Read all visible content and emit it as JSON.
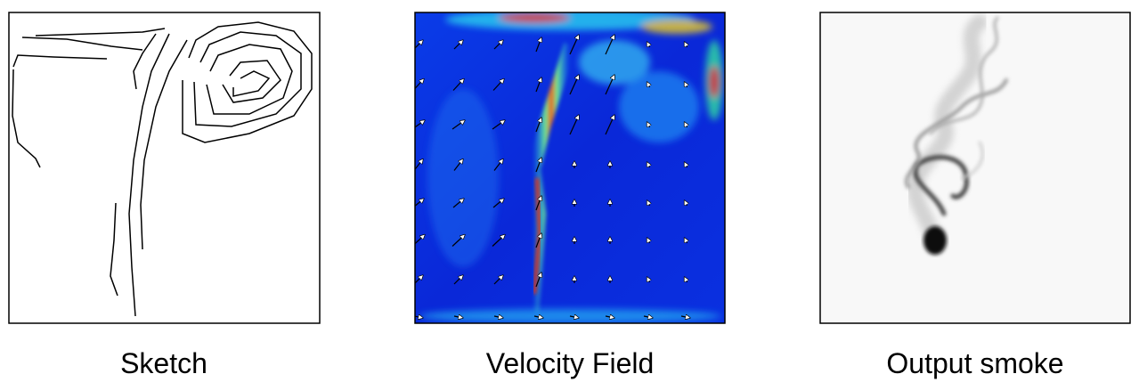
{
  "panels": [
    {
      "caption": "Sketch"
    },
    {
      "caption": "Velocity Field"
    },
    {
      "caption": "Output smoke"
    }
  ]
}
